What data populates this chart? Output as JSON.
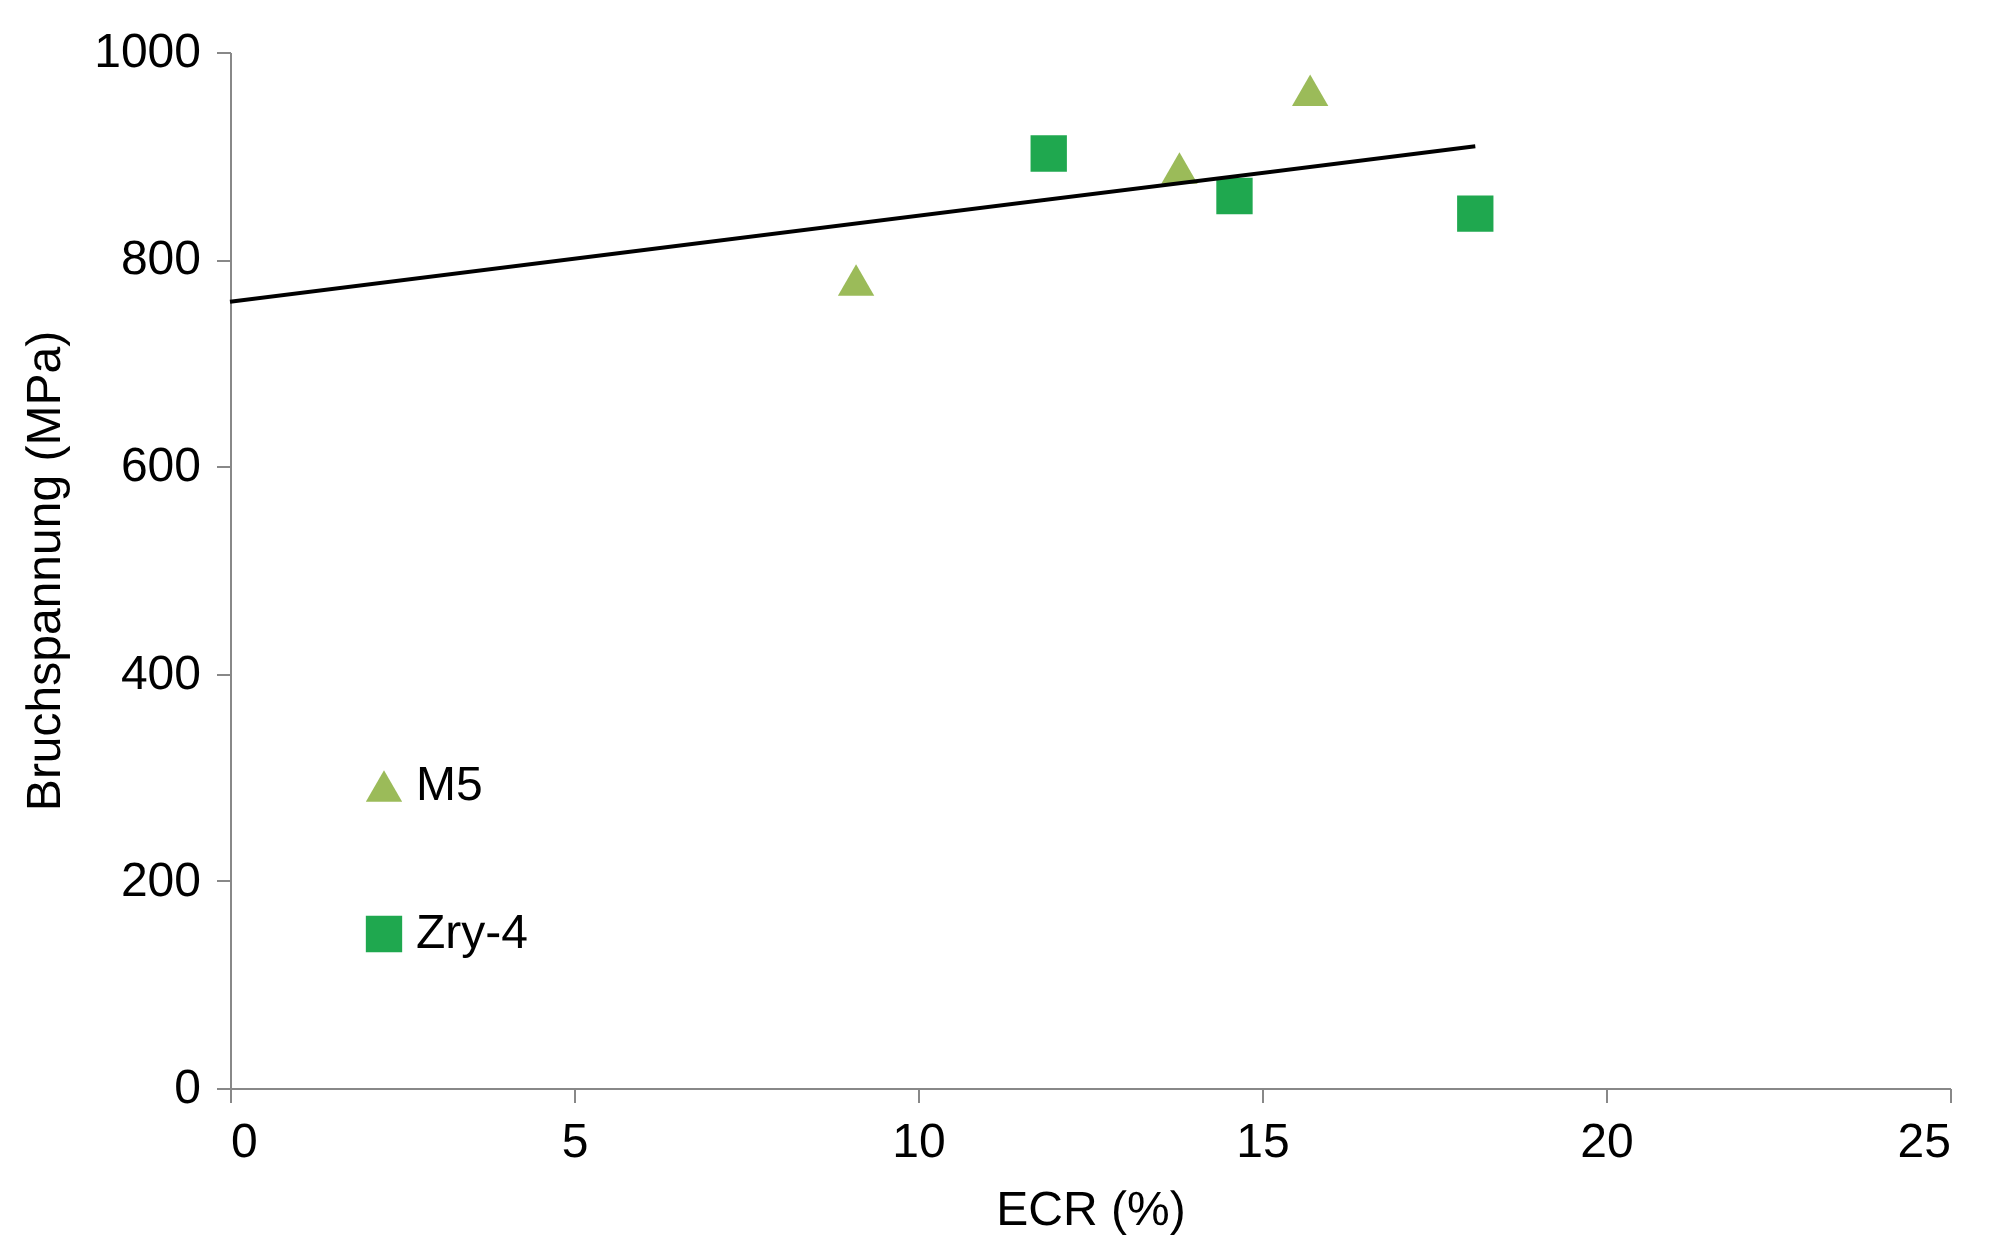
{
  "chart_data": {
    "type": "scatter",
    "xlabel": "ECR (%)",
    "ylabel": "Bruchspannung (MPa)",
    "xlim": [
      0,
      25
    ],
    "xticks": [
      0,
      5,
      10,
      15,
      20,
      25
    ],
    "ylim": [
      0,
      1000
    ],
    "yticks": [
      0,
      200,
      400,
      600,
      800,
      1000
    ],
    "grid": false,
    "legend": "bottom left",
    "series": [
      {
        "name": "M5",
        "color": "#9bbb59",
        "marker": "triangle",
        "x": [
          9.1,
          13.8,
          15.7
        ],
        "values": [
          780,
          888,
          963
        ]
      },
      {
        "name": "Zry-4",
        "color": "#1fa84f",
        "marker": "square",
        "x": [
          11.9,
          14.6,
          18.1
        ],
        "values": [
          902,
          861,
          844
        ]
      },
      {
        "type": "line",
        "color": "#000000",
        "marker": "none",
        "x": [
          0,
          18.1
        ],
        "values": [
          759,
          909
        ]
      }
    ]
  }
}
